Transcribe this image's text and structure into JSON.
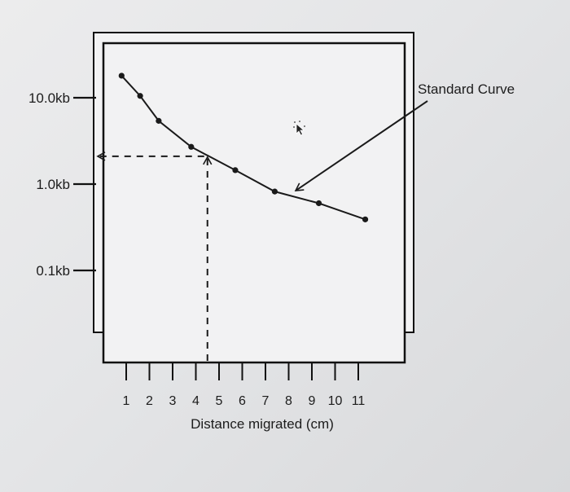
{
  "chart_data": {
    "type": "line",
    "title": "",
    "xlabel": "Distance migrated (cm)",
    "ylabel": "",
    "y_scale": "log",
    "x_ticks": [
      "1",
      "2",
      "3",
      "4",
      "5",
      "6",
      "7",
      "8",
      "9",
      "10",
      "11"
    ],
    "y_ticks": [
      {
        "label": "10.0kb",
        "value": 10.0
      },
      {
        "label": "1.0kb",
        "value": 1.0
      },
      {
        "label": "0.1kb",
        "value": 0.1
      }
    ],
    "series": [
      {
        "points": [
          {
            "x": 0.8,
            "y": 18.0
          },
          {
            "x": 1.6,
            "y": 10.5
          },
          {
            "x": 2.4,
            "y": 5.4
          },
          {
            "x": 3.8,
            "y": 2.7
          },
          {
            "x": 5.7,
            "y": 1.45
          },
          {
            "x": 7.4,
            "y": 0.82
          },
          {
            "x": 9.3,
            "y": 0.6
          },
          {
            "x": 11.3,
            "y": 0.39
          }
        ]
      }
    ],
    "guide_point": {
      "x": 4.5,
      "y": 2.1
    },
    "annotations": [
      {
        "text": "Standard Curve",
        "points_to": {
          "x": 8.3,
          "y": 0.84
        }
      }
    ],
    "colors": {
      "line": "#1a1a1a",
      "frame": "#111111"
    }
  }
}
